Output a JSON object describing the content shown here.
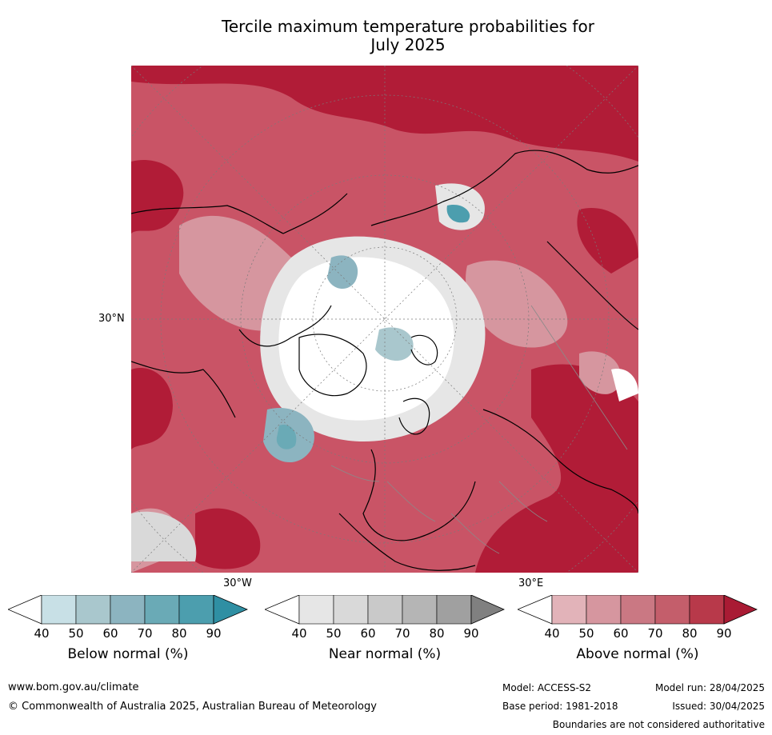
{
  "title_line1": "Tercile maximum temperature probabilities for",
  "title_line2": "July 2025",
  "map": {
    "projection": "north-polar-stereographic",
    "lat_label": "30°N",
    "lon_label_left": "30°W",
    "lon_label_right": "30°E"
  },
  "colorbars": [
    {
      "title": "Below normal (%)",
      "ticks": [
        "40",
        "50",
        "60",
        "70",
        "80",
        "90"
      ],
      "colors": [
        "#c8e0e6",
        "#a9c7cd",
        "#8cb4c0",
        "#6aaab6",
        "#4c9eae",
        "#2f8fa3"
      ]
    },
    {
      "title": "Near normal (%)",
      "ticks": [
        "40",
        "50",
        "60",
        "70",
        "80",
        "90"
      ],
      "colors": [
        "#e6e6e6",
        "#d9d9d9",
        "#c9c9c9",
        "#b5b5b5",
        "#a0a0a0",
        "#808080"
      ]
    },
    {
      "title": "Above normal (%)",
      "ticks": [
        "40",
        "50",
        "60",
        "70",
        "80",
        "90"
      ],
      "colors": [
        "#e2b3b9",
        "#d6969f",
        "#ca7883",
        "#c45e6b",
        "#b8394a",
        "#a91b34"
      ]
    }
  ],
  "footer": {
    "url": "www.bom.gov.au/climate",
    "copyright": "© Commonwealth of Australia 2025, Australian Bureau of Meteorology",
    "model": "Model: ACCESS-S2",
    "base_period": "Base period: 1981-2018",
    "model_run": "Model run: 28/04/2025",
    "issued": "Issued: 30/04/2025",
    "disclaimer": "Boundaries are not considered authoritative"
  }
}
